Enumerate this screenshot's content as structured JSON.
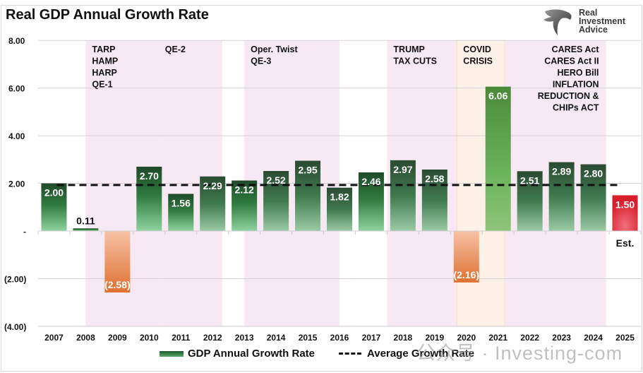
{
  "title": "Real GDP Annual Growth Rate",
  "logo": {
    "icon": "eagle-logo-icon",
    "lines": [
      "Real",
      "Investment",
      "Advice"
    ]
  },
  "watermark": "公众号 · Investing-com",
  "colors": {
    "positive_dark": "#1f4a2a",
    "positive_light": "#8fd3a0",
    "negative_top": "#f6c2a6",
    "negative_bottom": "#e07030",
    "covid_bar": "#5faa4c",
    "estimate": "#d61f2a",
    "shade_policy": "#f7e9f3",
    "shade_covid": "#fdf1e7",
    "average_line": "#111111"
  },
  "chart_data": {
    "type": "bar",
    "title": "Real GDP Annual Growth Rate",
    "xlabel": "",
    "ylabel": "",
    "ylim": [
      -4,
      8
    ],
    "yticks": [
      8,
      6,
      4,
      2,
      0,
      -2,
      -4
    ],
    "ytick_labels": [
      "8.00",
      "6.00",
      "4.00",
      "2.00",
      "-",
      "(2.00)",
      "(4.00)"
    ],
    "grid": true,
    "categories": [
      "2007",
      "2008",
      "2009",
      "2010",
      "2011",
      "2012",
      "2013",
      "2014",
      "2015",
      "2016",
      "2017",
      "2018",
      "2019",
      "2020",
      "2021",
      "2022",
      "2023",
      "2024",
      "2025"
    ],
    "series": [
      {
        "name": "GDP Annual Growth Rate",
        "values": [
          2.0,
          0.11,
          -2.58,
          2.7,
          1.56,
          2.29,
          2.12,
          2.52,
          2.95,
          1.82,
          2.46,
          2.97,
          2.58,
          -2.16,
          6.06,
          2.51,
          2.89,
          2.8,
          1.5
        ],
        "labels": [
          "2.00",
          "0.11",
          "(2.58)",
          "2.70",
          "1.56",
          "2.29",
          "2.12",
          "2.52",
          "2.95",
          "1.82",
          "2.46",
          "2.97",
          "2.58",
          "(2.16)",
          "6.06",
          "2.51",
          "2.89",
          "2.80",
          "1.50"
        ]
      },
      {
        "name": "Average Growth Rate",
        "type": "line",
        "style": "dashed",
        "value": 1.93
      }
    ],
    "annotations": [
      {
        "text": [
          "TARP",
          "HAMP",
          "HARP",
          "QE-1"
        ],
        "from": "2008.5",
        "to": "2010.8",
        "shade": "policy",
        "align": "left"
      },
      {
        "text": [
          "QE-2"
        ],
        "from": "2010.8",
        "to": "2012.8",
        "shade": "policy",
        "align": "left"
      },
      {
        "text": [
          "Oper. Twist",
          "QE-3"
        ],
        "from": "2013.5",
        "to": "2016.5",
        "shade": "policy",
        "align": "left"
      },
      {
        "text": [
          "TRUMP",
          "TAX CUTS"
        ],
        "from": "2018.0",
        "to": "2020.2",
        "shade": "policy",
        "align": "left"
      },
      {
        "text": [
          "COVID",
          "CRISIS"
        ],
        "from": "2020.2",
        "to": "2021.7",
        "shade": "covid",
        "align": "left"
      },
      {
        "text": [
          "CARES Act",
          "CARES Act II",
          "HERO Bill",
          "INFLATION",
          "REDUCTION &",
          "CHIPs ACT"
        ],
        "from": "2021.7",
        "to": "2024.9",
        "shade": "policy",
        "align": "right"
      }
    ],
    "estimate_label": "Est.",
    "legend": {
      "position": "bottom",
      "entries": [
        "GDP Annual Growth Rate",
        "Average Growth Rate"
      ]
    }
  }
}
